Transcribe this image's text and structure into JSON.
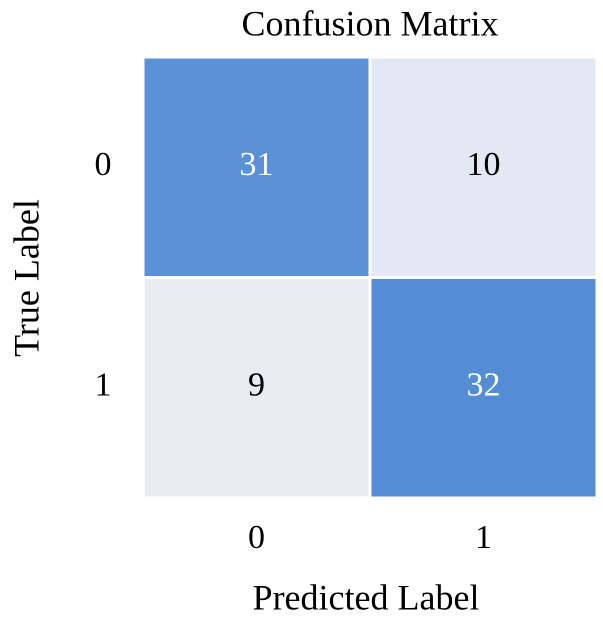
{
  "chart_data": {
    "type": "heatmap",
    "title": "Confusion Matrix",
    "x_label": "Predicted Label",
    "y_label": "True Label",
    "x_categories": [
      "0",
      "1"
    ],
    "y_categories": [
      "0",
      "1"
    ],
    "values": [
      [
        31,
        10
      ],
      [
        9,
        32
      ]
    ],
    "colors": [
      "#e9ecf3",
      "#558dd5"
    ]
  }
}
